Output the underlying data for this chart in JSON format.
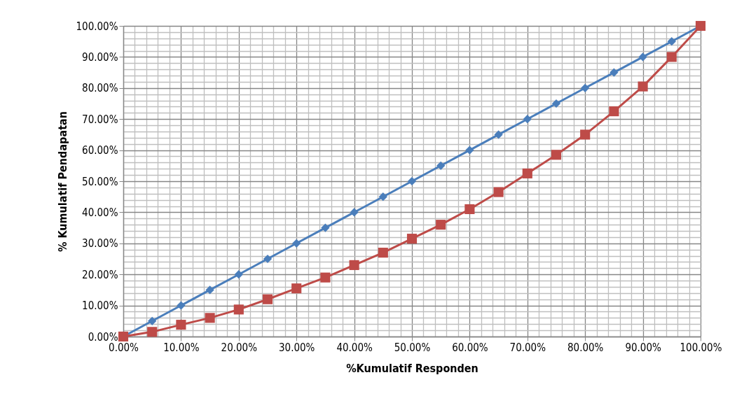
{
  "chart_data": {
    "type": "line",
    "xlabel": "%Kumulatif Responden",
    "ylabel": "% Kumulatif Pendapatan",
    "x": [
      0,
      5,
      10,
      15,
      20,
      25,
      30,
      35,
      40,
      45,
      50,
      55,
      60,
      65,
      70,
      75,
      80,
      85,
      90,
      95,
      100
    ],
    "series": [
      {
        "color": "#4a7ebb",
        "marker": "diamond",
        "values": [
          0,
          5,
          10,
          15,
          20,
          25,
          30,
          35,
          40,
          45,
          50,
          55,
          60,
          65,
          70,
          75,
          80,
          85,
          90,
          95,
          100
        ]
      },
      {
        "color": "#be4b48",
        "marker": "square",
        "values": [
          0,
          1.5,
          3.8,
          6,
          8.7,
          12,
          15.5,
          19,
          23,
          27,
          31.5,
          36,
          41,
          46.5,
          52.5,
          58.5,
          65,
          72.5,
          80.5,
          90,
          100
        ]
      }
    ],
    "xlim": [
      0,
      100
    ],
    "ylim": [
      0,
      100
    ],
    "xticks": [
      {
        "value": 0,
        "label": "0.00%"
      },
      {
        "value": 2,
        "label": null
      },
      {
        "value": 4,
        "label": null
      },
      {
        "value": 6,
        "label": null
      },
      {
        "value": 8,
        "label": null
      },
      {
        "value": 10,
        "label": "10.00%"
      },
      {
        "value": 12,
        "label": null
      },
      {
        "value": 14,
        "label": null
      },
      {
        "value": 16,
        "label": null
      },
      {
        "value": 18,
        "label": null
      },
      {
        "value": 20,
        "label": "20.00%"
      },
      {
        "value": 22,
        "label": null
      },
      {
        "value": 24,
        "label": null
      },
      {
        "value": 26,
        "label": null
      },
      {
        "value": 28,
        "label": null
      },
      {
        "value": 30,
        "label": "30.00%"
      },
      {
        "value": 32,
        "label": null
      },
      {
        "value": 34,
        "label": null
      },
      {
        "value": 36,
        "label": null
      },
      {
        "value": 38,
        "label": null
      },
      {
        "value": 40,
        "label": "40.00%"
      },
      {
        "value": 42,
        "label": null
      },
      {
        "value": 44,
        "label": null
      },
      {
        "value": 46,
        "label": null
      },
      {
        "value": 48,
        "label": null
      },
      {
        "value": 50,
        "label": "50.00%"
      },
      {
        "value": 52,
        "label": null
      },
      {
        "value": 54,
        "label": null
      },
      {
        "value": 56,
        "label": null
      },
      {
        "value": 58,
        "label": null
      },
      {
        "value": 60,
        "label": "60.00%"
      },
      {
        "value": 62,
        "label": null
      },
      {
        "value": 64,
        "label": null
      },
      {
        "value": 66,
        "label": null
      },
      {
        "value": 68,
        "label": null
      },
      {
        "value": 70,
        "label": "70.00%"
      },
      {
        "value": 72,
        "label": null
      },
      {
        "value": 74,
        "label": null
      },
      {
        "value": 76,
        "label": null
      },
      {
        "value": 78,
        "label": null
      },
      {
        "value": 80,
        "label": "80.00%"
      },
      {
        "value": 82,
        "label": null
      },
      {
        "value": 84,
        "label": null
      },
      {
        "value": 86,
        "label": null
      },
      {
        "value": 88,
        "label": null
      },
      {
        "value": 90,
        "label": "90.00%"
      },
      {
        "value": 92,
        "label": null
      },
      {
        "value": 94,
        "label": null
      },
      {
        "value": 96,
        "label": null
      },
      {
        "value": 98,
        "label": null
      },
      {
        "value": 100,
        "label": "100.00%"
      }
    ],
    "yticks": [
      {
        "value": 0,
        "label": "0.00%"
      },
      {
        "value": 2,
        "label": null
      },
      {
        "value": 4,
        "label": null
      },
      {
        "value": 6,
        "label": null
      },
      {
        "value": 8,
        "label": null
      },
      {
        "value": 10,
        "label": "10.00%"
      },
      {
        "value": 12,
        "label": null
      },
      {
        "value": 14,
        "label": null
      },
      {
        "value": 16,
        "label": null
      },
      {
        "value": 18,
        "label": null
      },
      {
        "value": 20,
        "label": "20.00%"
      },
      {
        "value": 22,
        "label": null
      },
      {
        "value": 24,
        "label": null
      },
      {
        "value": 26,
        "label": null
      },
      {
        "value": 28,
        "label": null
      },
      {
        "value": 30,
        "label": "30.00%"
      },
      {
        "value": 32,
        "label": null
      },
      {
        "value": 34,
        "label": null
      },
      {
        "value": 36,
        "label": null
      },
      {
        "value": 38,
        "label": null
      },
      {
        "value": 40,
        "label": "40.00%"
      },
      {
        "value": 42,
        "label": null
      },
      {
        "value": 44,
        "label": null
      },
      {
        "value": 46,
        "label": null
      },
      {
        "value": 48,
        "label": null
      },
      {
        "value": 50,
        "label": "50.00%"
      },
      {
        "value": 52,
        "label": null
      },
      {
        "value": 54,
        "label": null
      },
      {
        "value": 56,
        "label": null
      },
      {
        "value": 58,
        "label": null
      },
      {
        "value": 60,
        "label": "60.00%"
      },
      {
        "value": 62,
        "label": null
      },
      {
        "value": 64,
        "label": null
      },
      {
        "value": 66,
        "label": null
      },
      {
        "value": 68,
        "label": null
      },
      {
        "value": 70,
        "label": "70.00%"
      },
      {
        "value": 72,
        "label": null
      },
      {
        "value": 74,
        "label": null
      },
      {
        "value": 76,
        "label": null
      },
      {
        "value": 78,
        "label": null
      },
      {
        "value": 80,
        "label": "80.00%"
      },
      {
        "value": 82,
        "label": null
      },
      {
        "value": 84,
        "label": null
      },
      {
        "value": 86,
        "label": null
      },
      {
        "value": 88,
        "label": null
      },
      {
        "value": 90,
        "label": "90.00%"
      },
      {
        "value": 92,
        "label": null
      },
      {
        "value": 94,
        "label": null
      },
      {
        "value": 96,
        "label": null
      },
      {
        "value": 98,
        "label": null
      },
      {
        "value": 100,
        "label": "100.00%"
      }
    ],
    "grid": true
  }
}
